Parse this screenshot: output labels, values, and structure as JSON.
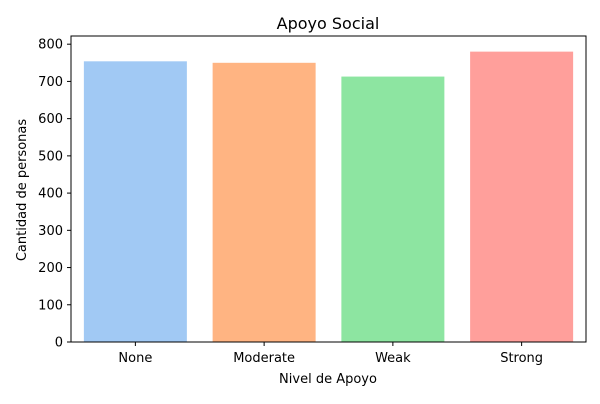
{
  "chart_data": {
    "type": "bar",
    "title": "Apoyo Social",
    "xlabel": "Nivel de Apoyo",
    "ylabel": "Cantidad de personas",
    "categories": [
      "None",
      "Moderate",
      "Weak",
      "Strong"
    ],
    "values": [
      754,
      750,
      713,
      780
    ],
    "ylim": [
      0,
      822
    ],
    "yticks": [
      0,
      100,
      200,
      300,
      400,
      500,
      600,
      700,
      800
    ],
    "grid": false,
    "colors": [
      "#a1c9f4",
      "#ffb482",
      "#8de5a1",
      "#ff9f9b"
    ]
  }
}
